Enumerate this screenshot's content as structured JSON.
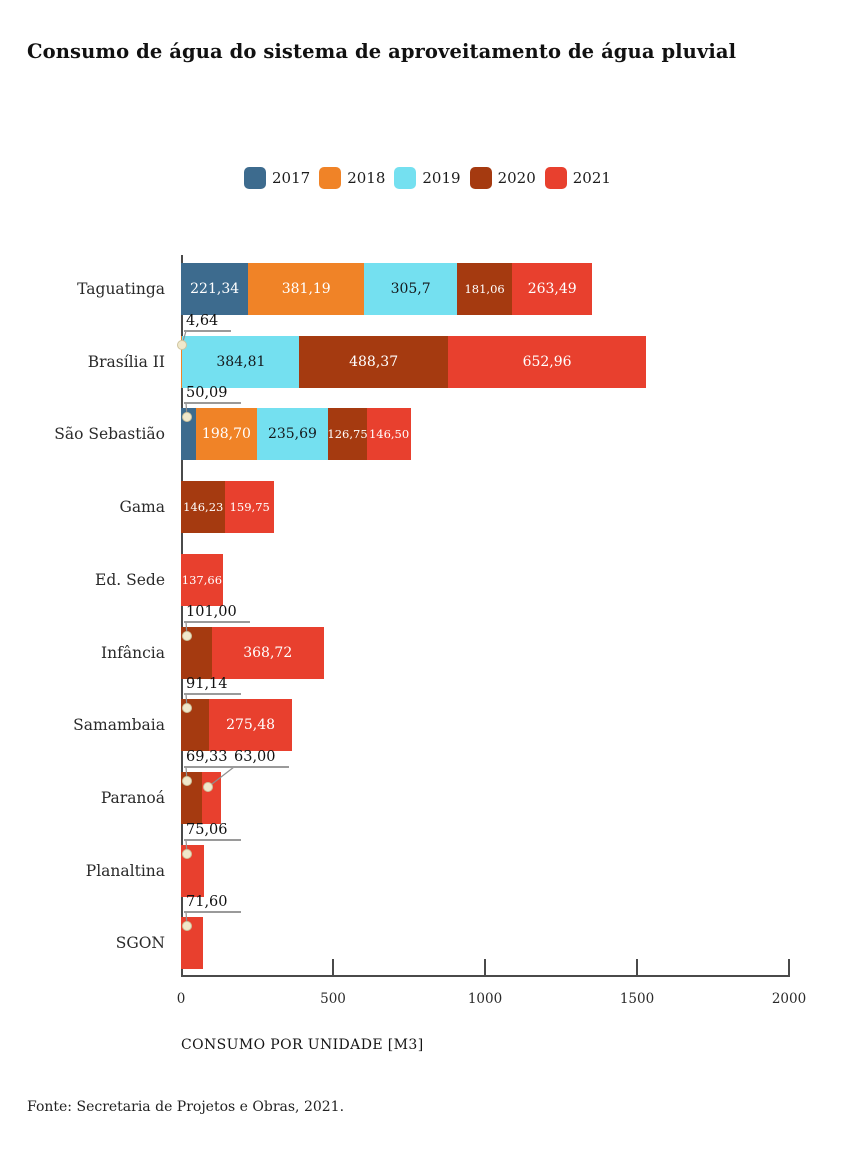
{
  "chart_data": {
    "type": "bar",
    "orientation": "horizontal",
    "stacked": true,
    "title": "Consumo de água do sistema de aproveitamento de água pluvial",
    "xlabel": "CONSUMO POR UNIDADE [M3]",
    "xlim": [
      0,
      2000
    ],
    "xticks": [
      0,
      500,
      1000,
      1500,
      2000
    ],
    "grid": false,
    "legend_position": "top",
    "series": [
      "2017",
      "2018",
      "2019",
      "2020",
      "2021"
    ],
    "colors": {
      "2017": "#3D6B8E",
      "2018": "#F08327",
      "2019": "#74E0F0",
      "2020": "#A53A10",
      "2021": "#E8402E"
    },
    "value_text_on_light": "#15191c",
    "value_text_on_dark": "#ffffff",
    "callout_dot_color": "#F0E8CB",
    "callout_line_color": "#8f8f8f",
    "categories": [
      "Taguatinga",
      "Brasília II",
      "São Sebastião",
      "Gama",
      "Ed. Sede",
      "Infância",
      "Samambaia",
      "Paranoá",
      "Planaltina",
      "SGON"
    ],
    "rows": [
      {
        "category": "Taguatinga",
        "segments": [
          {
            "year": "2017",
            "value": 221.34,
            "label": "221,34",
            "label_mode": "inside"
          },
          {
            "year": "2018",
            "value": 381.19,
            "label": "381,19",
            "label_mode": "inside"
          },
          {
            "year": "2019",
            "value": 305.7,
            "label": "305,7",
            "label_mode": "inside"
          },
          {
            "year": "2020",
            "value": 181.06,
            "label": "181,06",
            "label_mode": "inside"
          },
          {
            "year": "2021",
            "value": 263.49,
            "label": "263,49",
            "label_mode": "inside"
          }
        ]
      },
      {
        "category": "Brasília II",
        "segments": [
          {
            "year": "2018",
            "value": 4.64,
            "label": "4,64",
            "label_mode": "callout"
          },
          {
            "year": "2019",
            "value": 384.81,
            "label": "384,81",
            "label_mode": "inside"
          },
          {
            "year": "2020",
            "value": 488.37,
            "label": "488,37",
            "label_mode": "inside"
          },
          {
            "year": "2021",
            "value": 652.96,
            "label": "652,96",
            "label_mode": "inside"
          }
        ]
      },
      {
        "category": "São Sebastião",
        "segments": [
          {
            "year": "2017",
            "value": 50.09,
            "label": "50,09",
            "label_mode": "callout"
          },
          {
            "year": "2018",
            "value": 198.7,
            "label": "198,70",
            "label_mode": "inside"
          },
          {
            "year": "2019",
            "value": 235.69,
            "label": "235,69",
            "label_mode": "inside"
          },
          {
            "year": "2020",
            "value": 126.75,
            "label": "126,75",
            "label_mode": "inside"
          },
          {
            "year": "2021",
            "value": 146.5,
            "label": "146,50",
            "label_mode": "inside"
          }
        ]
      },
      {
        "category": "Gama",
        "segments": [
          {
            "year": "2020",
            "value": 146.23,
            "label": "146,23",
            "label_mode": "inside"
          },
          {
            "year": "2021",
            "value": 159.75,
            "label": "159,75",
            "label_mode": "inside"
          }
        ]
      },
      {
        "category": "Ed. Sede",
        "segments": [
          {
            "year": "2021",
            "value": 137.66,
            "label": "137,66",
            "label_mode": "inside"
          }
        ]
      },
      {
        "category": "Infância",
        "segments": [
          {
            "year": "2020",
            "value": 101.0,
            "label": "101,00",
            "label_mode": "callout"
          },
          {
            "year": "2021",
            "value": 368.72,
            "label": "368,72",
            "label_mode": "inside"
          }
        ]
      },
      {
        "category": "Samambaia",
        "segments": [
          {
            "year": "2020",
            "value": 91.14,
            "label": "91,14",
            "label_mode": "callout"
          },
          {
            "year": "2021",
            "value": 275.48,
            "label": "275,48",
            "label_mode": "inside"
          }
        ]
      },
      {
        "category": "Paranoá",
        "segments": [
          {
            "year": "2020",
            "value": 69.33,
            "label": "69,33",
            "label_mode": "callout"
          },
          {
            "year": "2021",
            "value": 63.0,
            "label": "63,00",
            "label_mode": "callout"
          }
        ]
      },
      {
        "category": "Planaltina",
        "segments": [
          {
            "year": "2021",
            "value": 75.06,
            "label": "75,06",
            "label_mode": "callout"
          }
        ]
      },
      {
        "category": "SGON",
        "segments": [
          {
            "year": "2021",
            "value": 71.6,
            "label": "71,60",
            "label_mode": "callout"
          }
        ]
      }
    ]
  },
  "footer": {
    "text": "Fonte: Secretaria de Projetos e Obras, 2021."
  }
}
